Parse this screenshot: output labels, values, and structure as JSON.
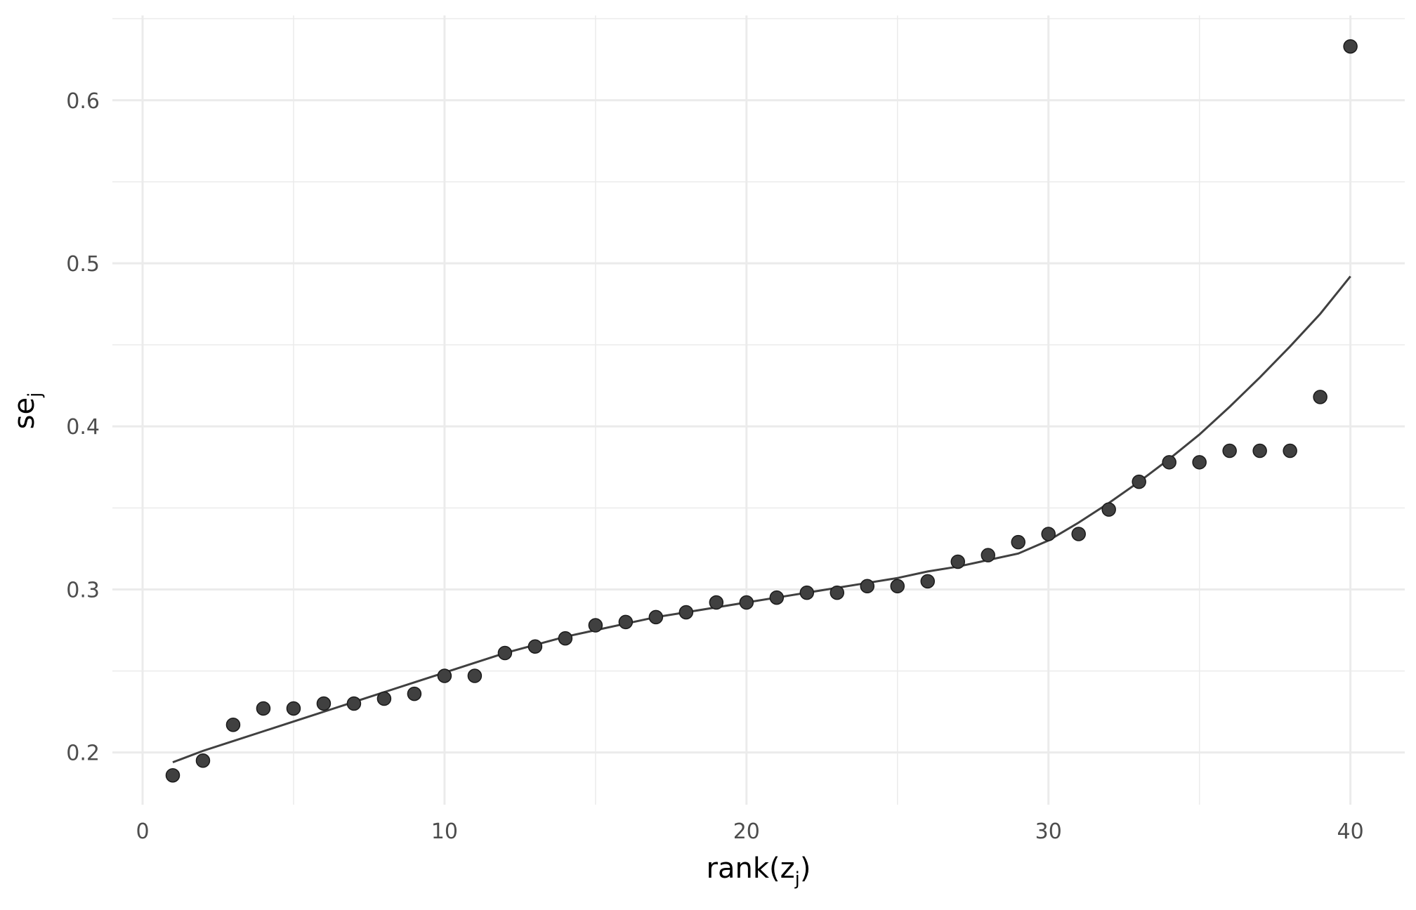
{
  "chart_data": {
    "type": "scatter",
    "xlabel": {
      "main": "rank(z",
      "sub": "j",
      "close": ")"
    },
    "ylabel": {
      "main": "se",
      "sub": "j"
    },
    "xlim": [
      -1,
      41.8
    ],
    "ylim": [
      0.168,
      0.652
    ],
    "xticks": [
      0,
      10,
      20,
      30,
      40
    ],
    "xtick_labels": [
      "0",
      "10",
      "20",
      "30",
      "40"
    ],
    "xminor": [
      5,
      15,
      25,
      35
    ],
    "yticks": [
      0.2,
      0.3,
      0.4,
      0.5,
      0.6
    ],
    "ytick_labels": [
      "0.2",
      "0.3",
      "0.4",
      "0.5",
      "0.6"
    ],
    "yminor": [
      0.25,
      0.35,
      0.45,
      0.55,
      0.65
    ],
    "grid": true,
    "legend": "none",
    "point_color": "#404040",
    "line_color": "#404040",
    "grid_color": "#ebebeb",
    "series": [
      {
        "kind": "points",
        "x": [
          1,
          2,
          3,
          4,
          5,
          6,
          7,
          8,
          9,
          10,
          11,
          12,
          13,
          14,
          15,
          16,
          17,
          18,
          19,
          20,
          21,
          22,
          23,
          24,
          25,
          26,
          27,
          28,
          29,
          30,
          31,
          32,
          33,
          34,
          35,
          36,
          37,
          38,
          39,
          40
        ],
        "y": [
          0.186,
          0.195,
          0.217,
          0.227,
          0.227,
          0.23,
          0.23,
          0.233,
          0.236,
          0.247,
          0.247,
          0.261,
          0.265,
          0.27,
          0.278,
          0.28,
          0.283,
          0.286,
          0.292,
          0.292,
          0.295,
          0.298,
          0.298,
          0.302,
          0.302,
          0.305,
          0.317,
          0.321,
          0.329,
          0.334,
          0.334,
          0.349,
          0.366,
          0.378,
          0.378,
          0.385,
          0.385,
          0.385,
          0.418,
          0.633
        ]
      },
      {
        "kind": "line",
        "x": [
          1,
          2,
          3,
          4,
          5,
          6,
          7,
          8,
          9,
          10,
          11,
          12,
          13,
          14,
          15,
          16,
          17,
          18,
          19,
          20,
          21,
          22,
          23,
          24,
          25,
          26,
          27,
          28,
          29,
          30,
          31,
          32,
          33,
          34,
          35,
          36,
          37,
          38,
          39,
          40
        ],
        "y": [
          0.194,
          0.201,
          0.207,
          0.213,
          0.219,
          0.225,
          0.231,
          0.237,
          0.243,
          0.249,
          0.255,
          0.261,
          0.266,
          0.271,
          0.275,
          0.279,
          0.283,
          0.286,
          0.289,
          0.292,
          0.295,
          0.298,
          0.301,
          0.304,
          0.307,
          0.311,
          0.314,
          0.318,
          0.322,
          0.33,
          0.341,
          0.353,
          0.366,
          0.38,
          0.395,
          0.412,
          0.43,
          0.449,
          0.469,
          0.492
        ]
      }
    ]
  }
}
